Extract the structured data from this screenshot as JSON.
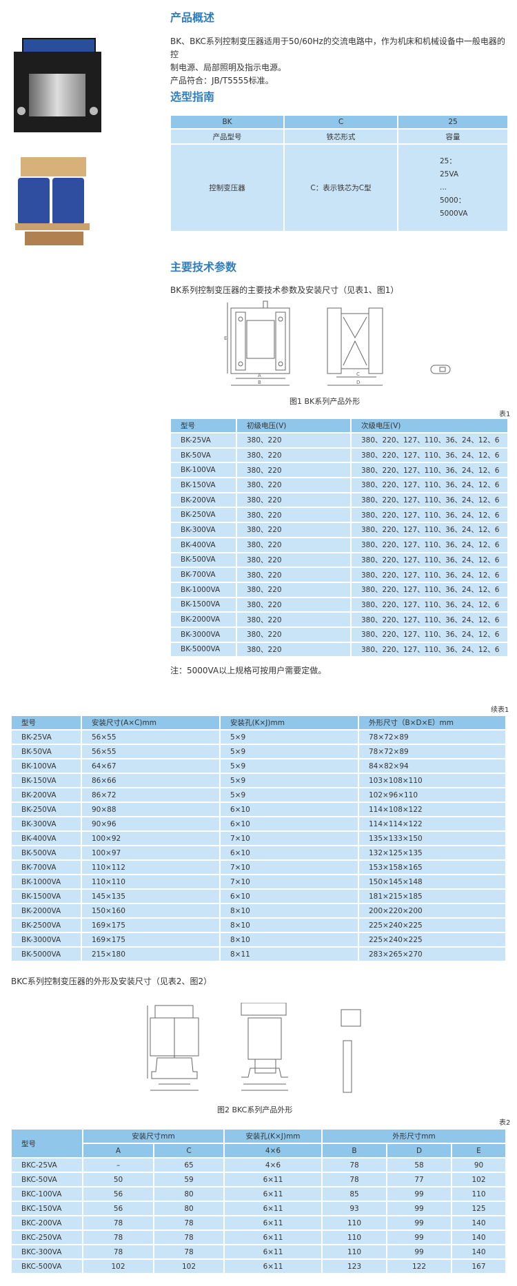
{
  "overview": {
    "title": "产品概述",
    "line1": "BK、BKC系列控制变压器适用于50/60Hz的交流电路中，作为机床和机械设备中一般电器的控",
    "line2": "制电源、局部照明及指示电源。",
    "line3": "产品符合：JB/T5555标准。"
  },
  "guide": {
    "title": "选型指南",
    "codes": [
      "BK",
      "C",
      "25"
    ],
    "labels": [
      "产品型号",
      "铁芯形式",
      "容量"
    ],
    "values": [
      "控制变压器",
      "C：表示铁芯为C型"
    ],
    "capacity_lines": [
      "25：",
      "25VA",
      "...",
      "5000：",
      "5000VA"
    ]
  },
  "tech": {
    "title": "主要技术参数",
    "intro": "BK系列控制变压器的主要技术参数及安装尺寸（见表1、图1）",
    "fig1_caption": "图1 BK系列产品外形",
    "fig1_labels": {
      "A": "A",
      "B": "B",
      "C": "C",
      "D": "D",
      "E": "E"
    },
    "table1_tag": "表1",
    "table1": {
      "headers": [
        "型号",
        "初级电压(V)",
        "次级电压(V)"
      ],
      "rows": [
        [
          "BK-25VA",
          "380、220",
          "380、220、127、110、36、24、12、6"
        ],
        [
          "BK-50VA",
          "380、220",
          "380、220、127、110、36、24、12、6"
        ],
        [
          "BK-100VA",
          "380、220",
          "380、220、127、110、36、24、12、6"
        ],
        [
          "BK-150VA",
          "380、220",
          "380、220、127、110、36、24、12、6"
        ],
        [
          "BK-200VA",
          "380、220",
          "380、220、127、110、36、24、12、6"
        ],
        [
          "BK-250VA",
          "380、220",
          "380、220、127、110、36、24、12、6"
        ],
        [
          "BK-300VA",
          "380、220",
          "380、220、127、110、36、24、12、6"
        ],
        [
          "BK-400VA",
          "380、220",
          "380、220、127、110、36、24、12、6"
        ],
        [
          "BK-500VA",
          "380、220",
          "380、220、127、110、36、24、12、6"
        ],
        [
          "BK-700VA",
          "380、220",
          "380、220、127、110、36、24、12、6"
        ],
        [
          "BK-1000VA",
          "380、220",
          "380、220、127、110、36、24、12、6"
        ],
        [
          "BK-1500VA",
          "380、220",
          "380、220、127、110、36、24、12、6"
        ],
        [
          "BK-2000VA",
          "380、220",
          "380、220、127、110、36、24、12、6"
        ],
        [
          "BK-3000VA",
          "380、220",
          "380、220、127、110、36、24、12、6"
        ],
        [
          "BK-5000VA",
          "380、220",
          "380、220、127、110、36、24、12、6"
        ]
      ]
    },
    "note": "注：5000VA以上规格可按用户需要定做。",
    "table1b_tag": "续表1",
    "table1b": {
      "headers": [
        "型号",
        "安装尺寸(A×C)mm",
        "安装孔(K×J)mm",
        "外形尺寸（B×D×E）mm"
      ],
      "rows": [
        [
          "BK-25VA",
          "56×55",
          "5×9",
          "78×72×89"
        ],
        [
          "BK-50VA",
          "56×55",
          "5×9",
          "78×72×89"
        ],
        [
          "BK-100VA",
          "64×67",
          "5×9",
          "84×82×94"
        ],
        [
          "BK-150VA",
          "86×66",
          "5×9",
          "103×108×110"
        ],
        [
          "BK-200VA",
          "86×72",
          "5×9",
          "102×96×110"
        ],
        [
          "BK-250VA",
          "90×88",
          "6×10",
          "114×108×122"
        ],
        [
          "BK-300VA",
          "90×96",
          "6×10",
          "114×114×122"
        ],
        [
          "BK-400VA",
          "100×92",
          "7×10",
          "135×133×150"
        ],
        [
          "BK-500VA",
          "100×97",
          "6×10",
          "132×125×135"
        ],
        [
          "BK-700VA",
          "110×112",
          "7×10",
          "153×158×165"
        ],
        [
          "BK-1000VA",
          "110×110",
          "7×10",
          "150×145×148"
        ],
        [
          "BK-1500VA",
          "145×135",
          "6×10",
          "181×215×185"
        ],
        [
          "BK-2000VA",
          "150×160",
          "8×10",
          "200×220×200"
        ],
        [
          "BK-2500VA",
          "169×175",
          "8×10",
          "225×240×225"
        ],
        [
          "BK-3000VA",
          "169×175",
          "8×10",
          "225×240×225"
        ],
        [
          "BK-5000VA",
          "215×180",
          "8×11",
          "283×265×270"
        ]
      ]
    }
  },
  "bkc": {
    "intro": "BKC系列控制变压器的外形及安装尺寸（见表2、图2）",
    "fig2_caption": "图2 BKC系列产品外形",
    "table2_tag": "表2",
    "table2": {
      "group_headers": [
        "型号",
        "安装尺寸mm",
        "安装孔(K×J)mm",
        "外形尺寸mm"
      ],
      "sub_headers": [
        "A",
        "C",
        "4×6",
        "B",
        "D",
        "E"
      ],
      "rows": [
        [
          "BKC-25VA",
          "–",
          "65",
          "4×6",
          "78",
          "58",
          "90"
        ],
        [
          "BKC-50VA",
          "50",
          "59",
          "6×11",
          "78",
          "77",
          "102"
        ],
        [
          "BKC-100VA",
          "56",
          "80",
          "6×11",
          "85",
          "99",
          "110"
        ],
        [
          "BKC-150VA",
          "56",
          "80",
          "6×11",
          "93",
          "99",
          "125"
        ],
        [
          "BKC-200VA",
          "78",
          "78",
          "6×11",
          "110",
          "99",
          "140"
        ],
        [
          "BKC-250VA",
          "78",
          "78",
          "6×11",
          "110",
          "99",
          "140"
        ],
        [
          "BKC-300VA",
          "78",
          "78",
          "6×11",
          "110",
          "99",
          "140"
        ],
        [
          "BKC-500VA",
          "102",
          "102",
          "6×11",
          "123",
          "122",
          "167"
        ]
      ]
    }
  },
  "colors": {
    "heading": "#2f7fc0",
    "table_header": "#8fc6ea",
    "table_row": "#c9e4f6"
  }
}
